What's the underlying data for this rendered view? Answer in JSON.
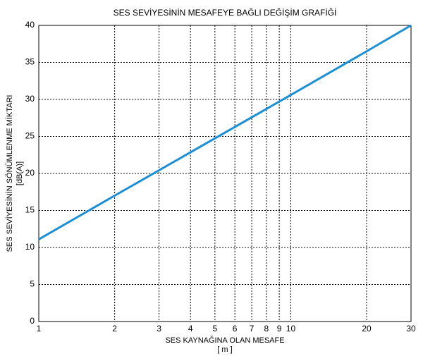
{
  "chart_data": {
    "type": "line",
    "title": "SES SEVİYESİNİN MESAFEYE BAĞLI DEĞİŞİM GRAFİĞİ",
    "xlabel": "SES KAYNAĞINA OLAN MESAFE",
    "xunit": "[ m ]",
    "ylabel": "SES SEVİYESİNİN SÖNÜMLENME MİKTARI",
    "yunit": "[dB(A)]",
    "x": [
      1,
      2,
      10,
      20,
      30
    ],
    "series": [
      {
        "color": "#1a8fd6",
        "values": [
          11.1,
          17,
          30.6,
          36.5,
          40
        ]
      }
    ],
    "xscale": "log",
    "xlim": [
      1,
      30
    ],
    "xticks": [
      1,
      2,
      3,
      4,
      5,
      6,
      7,
      8,
      9,
      10,
      20,
      30
    ],
    "ylim": [
      0,
      40
    ],
    "yticks": [
      0,
      5,
      10,
      15,
      20,
      25,
      30,
      35,
      40
    ],
    "grid": true
  }
}
